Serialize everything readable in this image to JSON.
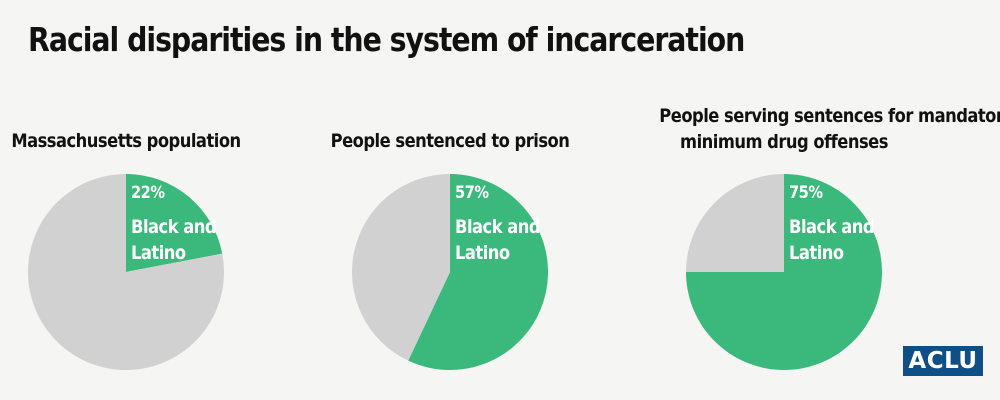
{
  "title": "Racial disparities in the system of incarceration",
  "colors": {
    "highlight": "#3bb87c",
    "rest": "#d1d1d1",
    "background": "#f5f5f4",
    "logo": "#0f4f86"
  },
  "logo_text": "ACLU",
  "chart_data": [
    {
      "type": "pie",
      "title_lines": [
        "Massachusetts population"
      ],
      "slices": [
        {
          "name": "Black and Latino",
          "value": 22,
          "label": "22%"
        },
        {
          "name": "",
          "value": 78,
          "label": ""
        }
      ]
    },
    {
      "type": "pie",
      "title_lines": [
        "People sentenced to prison"
      ],
      "slices": [
        {
          "name": "Black and Latino",
          "value": 57,
          "label": "57%"
        },
        {
          "name": "",
          "value": 43,
          "label": ""
        }
      ]
    },
    {
      "type": "pie",
      "title_lines": [
        "People serving sentences for mandatory",
        "minimum drug offenses"
      ],
      "slices": [
        {
          "name": "Black and Latino",
          "value": 75,
          "label": "75%"
        },
        {
          "name": "",
          "value": 25,
          "label": ""
        }
      ]
    }
  ],
  "slice_caption_lines": [
    "Black and",
    "Latino"
  ]
}
